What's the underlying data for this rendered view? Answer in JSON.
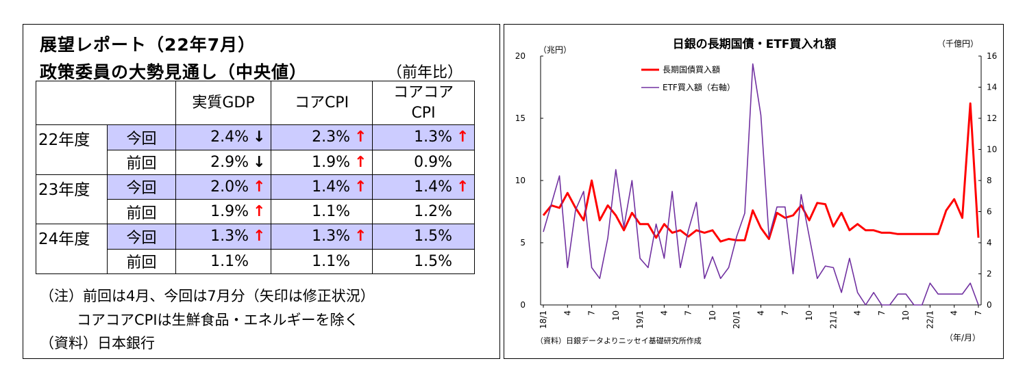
{
  "left": {
    "title1": "展望レポート（22年7月）",
    "title2": "政策委員の大勢見通し（中央値）",
    "yoy": "（前年比）",
    "headers": [
      "実質GDP",
      "コアCPI",
      "コアコア",
      "CPI"
    ],
    "rows": [
      {
        "year": "22年度",
        "label": "今回",
        "current": true,
        "v": [
          "2.4%",
          "2.3%",
          "1.3%"
        ],
        "a": [
          "down",
          "up",
          "up"
        ]
      },
      {
        "year": "",
        "label": "前回",
        "current": false,
        "v": [
          "2.9%",
          "1.9%",
          "0.9%"
        ],
        "a": [
          "down",
          "up",
          ""
        ]
      },
      {
        "year": "23年度",
        "label": "今回",
        "current": true,
        "v": [
          "2.0%",
          "1.4%",
          "1.4%"
        ],
        "a": [
          "up",
          "up",
          "up"
        ]
      },
      {
        "year": "",
        "label": "前回",
        "current": false,
        "v": [
          "1.9%",
          "1.1%",
          "1.2%"
        ],
        "a": [
          "up",
          "",
          ""
        ]
      },
      {
        "year": "24年度",
        "label": "今回",
        "current": true,
        "v": [
          "1.3%",
          "1.3%",
          "1.5%"
        ],
        "a": [
          "up",
          "up",
          ""
        ]
      },
      {
        "year": "",
        "label": "前回",
        "current": false,
        "v": [
          "1.1%",
          "1.1%",
          "1.5%"
        ],
        "a": [
          "",
          "",
          ""
        ]
      }
    ],
    "note1": "（注）前回は4月、今回は7月分（矢印は修正状況）",
    "note2": "コアコアCPIは生鮮食品・エネルギーを除く",
    "note3": "（資料）日本銀行",
    "arrow_up": "↑",
    "arrow_down": "↓"
  },
  "chart_data": {
    "type": "line",
    "title": "日銀の長期国債・ETF買入れ額",
    "ylabel_left": "（兆円）",
    "ylabel_right": "（千億円）",
    "xlabel": "（年/月）",
    "source": "（資料）日銀データよりニッセイ基礎研究所作成",
    "ylim_left": [
      0,
      20
    ],
    "yticks_left": [
      0,
      5,
      10,
      15,
      20
    ],
    "ylim_right": [
      0,
      16
    ],
    "yticks_right": [
      0,
      2,
      4,
      6,
      8,
      10,
      12,
      14,
      16
    ],
    "grid": false,
    "legend_position": "top-left",
    "x": [
      "18/1",
      "18/2",
      "18/3",
      "18/4",
      "18/5",
      "18/6",
      "18/7",
      "18/8",
      "18/9",
      "18/10",
      "18/11",
      "18/12",
      "19/1",
      "19/2",
      "19/3",
      "19/4",
      "19/5",
      "19/6",
      "19/7",
      "19/8",
      "19/9",
      "19/10",
      "19/11",
      "19/12",
      "20/1",
      "20/2",
      "20/3",
      "20/4",
      "20/5",
      "20/6",
      "20/7",
      "20/8",
      "20/9",
      "20/10",
      "20/11",
      "20/12",
      "21/1",
      "21/2",
      "21/3",
      "21/4",
      "21/5",
      "21/6",
      "21/7",
      "21/8",
      "21/9",
      "21/10",
      "21/11",
      "21/12",
      "22/1",
      "22/2",
      "22/3",
      "22/4",
      "22/5",
      "22/6",
      "22/7"
    ],
    "xtick_labels": [
      "18/1",
      "4",
      "7",
      "10",
      "19/1",
      "4",
      "7",
      "10",
      "20/1",
      "4",
      "7",
      "10",
      "21/1",
      "4",
      "7",
      "10",
      "22/1",
      "4",
      "7"
    ],
    "series": [
      {
        "name": "長期国債買入額",
        "axis": "left",
        "color": "#ff0000",
        "values": [
          7.2,
          8.0,
          7.8,
          9.0,
          7.8,
          6.8,
          10.0,
          6.8,
          8.0,
          7.2,
          6.0,
          7.4,
          6.5,
          6.5,
          5.4,
          6.5,
          5.8,
          6.0,
          5.5,
          6.0,
          5.8,
          6.0,
          5.1,
          5.3,
          5.2,
          5.2,
          7.6,
          6.2,
          5.3,
          7.4,
          7.0,
          7.2,
          8.0,
          6.8,
          8.2,
          8.1,
          6.3,
          7.4,
          6.0,
          6.5,
          6.0,
          6.0,
          5.8,
          5.8,
          5.7,
          5.7,
          5.7,
          5.7,
          5.7,
          5.7,
          7.6,
          8.5,
          7.0,
          16.2,
          5.4
        ]
      },
      {
        "name": "ETF買入額（右軸）",
        "axis": "right",
        "color": "#7030a0",
        "values": [
          4.7,
          6.5,
          8.3,
          2.4,
          6.1,
          7.3,
          2.4,
          1.7,
          4.3,
          8.7,
          5.0,
          8.0,
          3.0,
          2.4,
          5.2,
          3.0,
          7.3,
          2.4,
          4.8,
          6.6,
          1.7,
          3.1,
          1.7,
          2.4,
          4.4,
          5.9,
          15.5,
          12.2,
          4.4,
          6.3,
          6.3,
          2.0,
          7.1,
          4.4,
          1.7,
          2.5,
          2.4,
          0.8,
          3.0,
          0.8,
          0.0,
          0.8,
          0.0,
          0.0,
          0.7,
          0.7,
          0.0,
          0.0,
          1.4,
          0.7,
          0.7,
          0.7,
          0.7,
          1.4,
          0.0
        ]
      }
    ]
  }
}
